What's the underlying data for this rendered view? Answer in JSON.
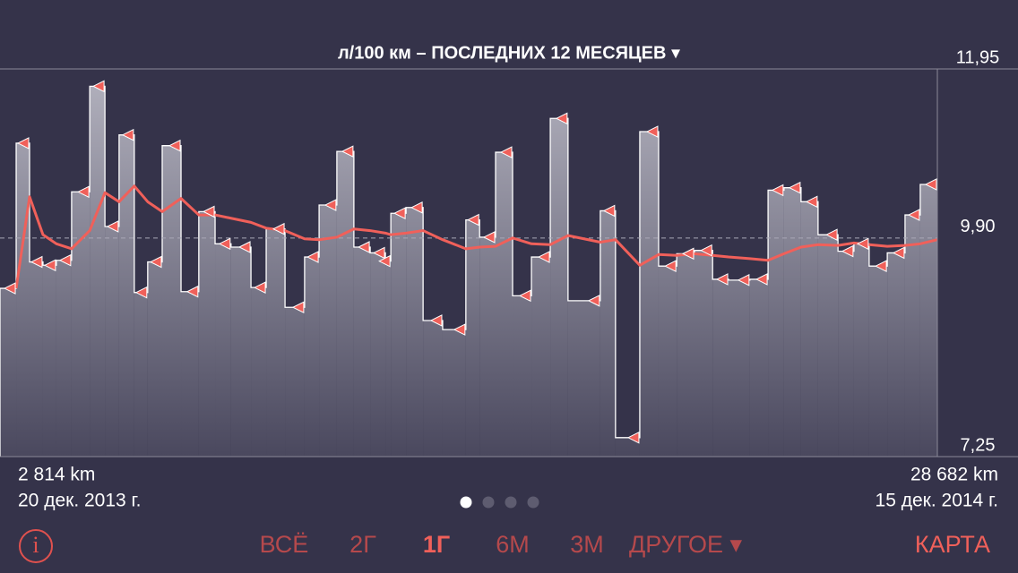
{
  "header": {
    "title": "л/100 км – ПОСЛЕДНИХ 12 МЕСЯЦЕВ ▾"
  },
  "chart_data": {
    "type": "line",
    "xlim": [
      2814,
      28682
    ],
    "x": [
      3260,
      3630,
      4000,
      4370,
      4790,
      5290,
      5710,
      6100,
      6520,
      6890,
      7290,
      7810,
      8300,
      8750,
      9190,
      9740,
      10160,
      10680,
      11220,
      11620,
      12110,
      12580,
      13030,
      13450,
      13600,
      14020,
      14490,
      15030,
      15670,
      16050,
      16490,
      16960,
      17480,
      18000,
      18490,
      19380,
      19800,
      20470,
      20990,
      21490,
      21980,
      22480,
      22920,
      23510,
      24010,
      24450,
      24920,
      25390,
      25940,
      26380,
      26800,
      27300,
      27790,
      28210,
      28682
    ],
    "series": [
      {
        "kind": "step",
        "color": "#f0605a",
        "values": [
          9.29,
          11.05,
          9.61,
          9.57,
          9.63,
          10.46,
          11.74,
          10.04,
          11.15,
          9.24,
          9.61,
          11.02,
          9.25,
          10.22,
          9.83,
          9.79,
          9.3,
          10.01,
          9.06,
          9.67,
          10.3,
          10.95,
          9.79,
          9.72,
          9.62,
          10.2,
          10.27,
          8.9,
          8.79,
          10.12,
          9.91,
          10.94,
          9.2,
          9.67,
          11.35,
          9.14,
          10.23,
          7.48,
          11.19,
          9.56,
          9.71,
          9.75,
          9.4,
          9.39,
          9.4,
          10.48,
          10.51,
          10.34,
          9.94,
          9.74,
          9.83,
          9.56,
          9.72,
          10.18,
          10.55
        ]
      },
      {
        "kind": "line",
        "color": "#f0605a",
        "values": [
          9.29,
          10.4,
          9.94,
          9.83,
          9.77,
          9.99,
          10.45,
          10.34,
          10.53,
          10.34,
          10.22,
          10.38,
          10.18,
          10.18,
          10.14,
          10.09,
          10.02,
          9.99,
          9.89,
          9.88,
          9.91,
          10.01,
          9.99,
          9.96,
          9.94,
          9.96,
          9.99,
          9.88,
          9.77,
          9.79,
          9.8,
          9.9,
          9.83,
          9.82,
          9.93,
          9.85,
          9.88,
          9.57,
          9.7,
          9.69,
          9.71,
          9.69,
          9.67,
          9.65,
          9.63,
          9.71,
          9.79,
          9.82,
          9.81,
          9.84,
          9.82,
          9.8,
          9.81,
          9.83,
          9.88
        ]
      }
    ],
    "ylim": [
      7.25,
      11.95
    ],
    "yticks": [
      {
        "value": 7.25,
        "label": "7,25"
      },
      {
        "value": 9.9,
        "label": "9,90"
      },
      {
        "value": 11.95,
        "label": "11,95"
      }
    ],
    "grid": true
  },
  "footer": {
    "start_distance": "2 814 km",
    "start_date": "20 дек. 2013 г.",
    "end_distance": "28 682 km",
    "end_date": "15 дек. 2014 г."
  },
  "nav": {
    "info": "i",
    "tabs": [
      "ВСЁ",
      "2Г",
      "1Г",
      "6М",
      "3М",
      "ДРУГОЕ ▾"
    ],
    "active_tab": 2,
    "map": "КАРТА"
  }
}
